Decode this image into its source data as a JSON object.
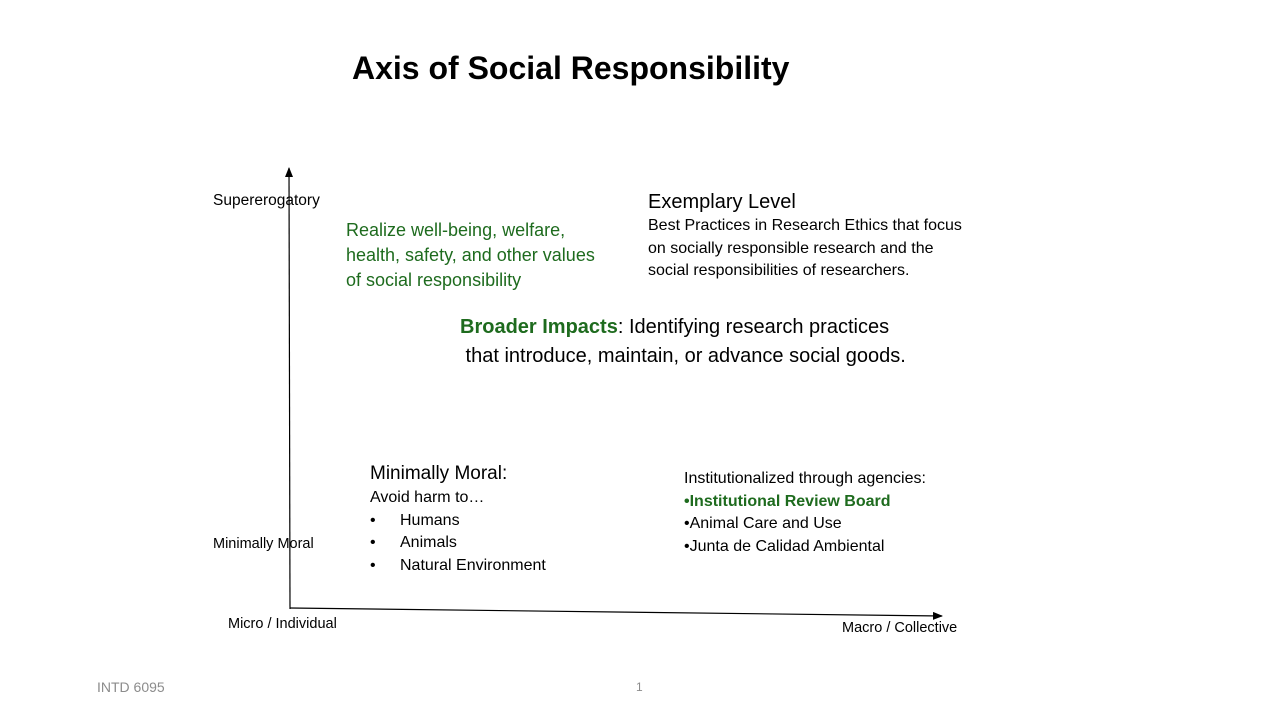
{
  "title": "Axis of Social Responsibility",
  "axes": {
    "y_top_label": "Supererogatory",
    "y_low_label": "Minimally Moral",
    "x_left_label": "Micro / Individual",
    "x_right_label": "Macro / Collective"
  },
  "green_values": {
    "line1": "Realize well-being, welfare,",
    "line2": "health, safety, and other values",
    "line3": "of social responsibility"
  },
  "exemplary": {
    "heading": "Exemplary Level",
    "line1": "Best Practices in Research Ethics that focus",
    "line2": "on socially responsible research and the",
    "line3": "social responsibilities of researchers."
  },
  "broader": {
    "highlight": "Broader Impacts",
    "rest1": ": Identifying research practices",
    "line2": " that introduce, maintain, or advance social goods."
  },
  "minimally_moral": {
    "heading": "Minimally Moral:",
    "sub": "Avoid harm to…",
    "items": [
      "Humans",
      "Animals",
      "Natural Environment"
    ]
  },
  "agencies": {
    "heading": "Institutionalized through agencies:",
    "item1": "Institutional Review Board",
    "item2": "Animal Care and Use",
    "item3": "Junta de Calidad Ambiental"
  },
  "footer": {
    "course": "INTD 6095",
    "page": "1"
  },
  "colors": {
    "accent_green": "#1e6b1e",
    "footer_gray": "#8c8c8c"
  }
}
